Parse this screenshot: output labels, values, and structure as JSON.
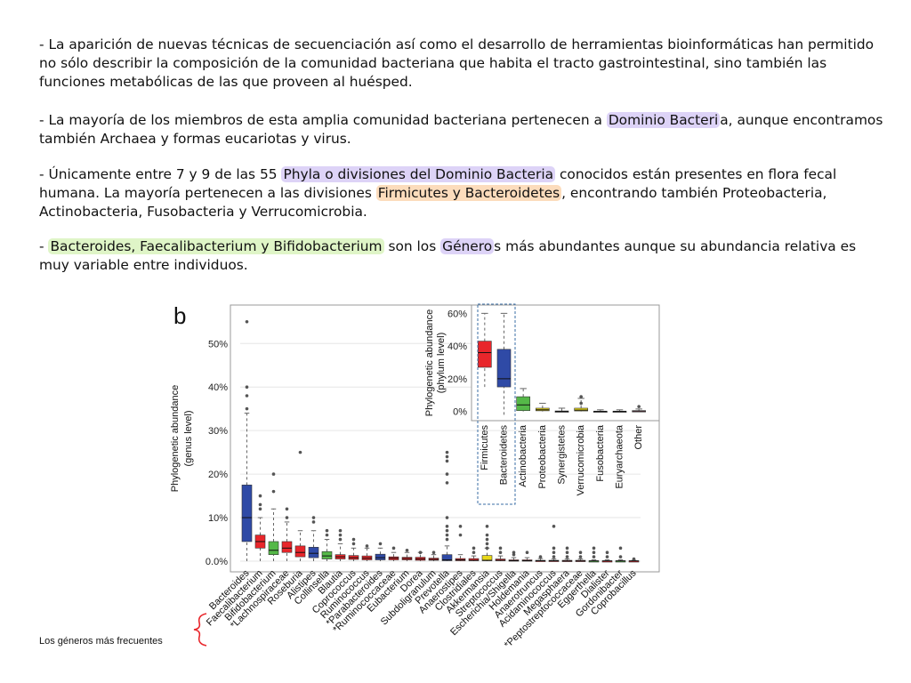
{
  "paragraphs": [
    {
      "id": "p1",
      "segments": [
        {
          "text": "- La aparición de nuevas técnicas de secuenciación así como el desarrollo de herramientas bioinformáticas han permitido no sólo describir la composición de la comunidad bacteriana que habita el tracto gastrointestinal, sino también las funciones metabólicas de las que proveen al huésped.",
          "hl": ""
        }
      ]
    },
    {
      "id": "p2",
      "segments": [
        {
          "text": "- La mayoría de los miembros de esta amplia comunidad bacteriana pertenecen a ",
          "hl": ""
        },
        {
          "text": "Dominio Bacteri",
          "hl": "purple"
        },
        {
          "text": "a, aunque encontramos también Archaea y formas eucariotas y virus.",
          "hl": ""
        }
      ]
    },
    {
      "id": "p3",
      "segments": [
        {
          "text": "- Únicamente entre 7 y 9 de las 55 ",
          "hl": ""
        },
        {
          "text": "Phyla o divisiones del Dominio Bacteria",
          "hl": "purple"
        },
        {
          "text": " conocidos están presentes en flora fecal humana. La mayoría pertenecen a las divisiones  ",
          "hl": ""
        },
        {
          "text": "Firmicutes y Bacteroidetes",
          "hl": "orange"
        },
        {
          "text": ", encontrando también Proteobacteria, Actinobacteria, Fusobacteria y Verrucomicrobia.",
          "hl": ""
        }
      ]
    },
    {
      "id": "p4",
      "segments": [
        {
          "text": "- ",
          "hl": ""
        },
        {
          "text": "Bacteroides, Faecalibacterium y Bifidobacterium",
          "hl": "green"
        },
        {
          "text": " son los ",
          "hl": ""
        },
        {
          "text": "Género",
          "hl": "purple"
        },
        {
          "text": "s más abundantes aunque su abundancia relativa es muy variable entre individuos.",
          "hl": ""
        }
      ]
    }
  ],
  "caption": "Los géneros más frecuentes",
  "colors": {
    "red": "#e8262b",
    "blue": "#2f4aa6",
    "green": "#55b848",
    "yellow": "#e8d81a",
    "pink": "#f08aa0",
    "gray": "#888888",
    "purple_hl": "#ddd3f7",
    "orange_hl": "#fcdcbc",
    "green_hl": "#dff5c7"
  },
  "chart_data": [
    {
      "type": "boxplot",
      "panel_letter": "b",
      "ylabel": "Phylogenetic abundance (genus level)",
      "ylim": [
        0,
        57
      ],
      "yticks": [
        0,
        10,
        20,
        30,
        40,
        50
      ],
      "ytick_labels": [
        "0.0%",
        "10%",
        "20%",
        "30%",
        "40%",
        "50%"
      ],
      "categories": [
        "Bacteroides",
        "Faecalibacterium",
        "Bifidobacterium",
        "*Lachnospiraceae",
        "Roseburia",
        "Alistipes",
        "Collinsella",
        "Blautia",
        "Coprococcus",
        "Ruminococcus",
        "*Parabacteroides",
        "*Ruminococcaceae",
        "Eubacterium",
        "Dorea",
        "Subdoligranulum",
        "Prevotella",
        "Anaerostipes",
        "Clostridiales",
        "Akkermansia",
        "Streptococcus",
        "Escherichia/Shigella",
        "Holdemania",
        "Anaerotruncus",
        "Acidaminococcus",
        "Megasphaera",
        "*Peptostreptococcaceae",
        "Eggerthella",
        "Dialister",
        "Gordonibacter",
        "Coprobacillus"
      ],
      "box_colors": [
        "blue",
        "red",
        "green",
        "red",
        "red",
        "blue",
        "green",
        "red",
        "red",
        "red",
        "blue",
        "red",
        "red",
        "red",
        "red",
        "blue",
        "red",
        "red",
        "yellow",
        "red",
        "red",
        "red",
        "red",
        "red",
        "red",
        "red",
        "green",
        "red",
        "green",
        "red"
      ],
      "q1": [
        4.5,
        3.0,
        1.5,
        2.0,
        1.0,
        0.8,
        0.5,
        0.5,
        0.4,
        0.3,
        0.3,
        0.3,
        0.3,
        0.2,
        0.2,
        0.1,
        0.1,
        0.1,
        0.1,
        0.1,
        0.05,
        0.05,
        0.05,
        0.05,
        0.02,
        0.02,
        0.02,
        0.02,
        0.02,
        0.02
      ],
      "median": [
        10,
        4.5,
        2.5,
        3.0,
        2.0,
        1.8,
        1.2,
        1.0,
        0.8,
        0.7,
        0.8,
        0.7,
        0.6,
        0.5,
        0.4,
        0.3,
        0.3,
        0.2,
        0.2,
        0.2,
        0.1,
        0.1,
        0.1,
        0.1,
        0.05,
        0.05,
        0.05,
        0.05,
        0.05,
        0.05
      ],
      "q3": [
        17.5,
        6.0,
        4.5,
        4.5,
        3.5,
        3.2,
        2.2,
        1.5,
        1.3,
        1.2,
        1.6,
        1.0,
        0.9,
        0.9,
        0.7,
        1.5,
        0.6,
        0.6,
        1.3,
        0.5,
        0.3,
        0.3,
        0.2,
        0.2,
        0.2,
        0.2,
        0.1,
        0.1,
        0.1,
        0.1
      ],
      "whisker_high": [
        34,
        10,
        12,
        9,
        7,
        7,
        5,
        4,
        3,
        3,
        3,
        2,
        2,
        2,
        1.5,
        3.5,
        1.5,
        1.2,
        3.0,
        1.2,
        0.8,
        0.8,
        0.6,
        0.5,
        0.5,
        0.5,
        0.3,
        0.3,
        0.3,
        0.2
      ],
      "outliers": [
        [
          35,
          38,
          40,
          55
        ],
        [
          12,
          13,
          15
        ],
        [
          16,
          20
        ],
        [
          10,
          12
        ],
        [
          25
        ],
        [
          9,
          10
        ],
        [
          6,
          7
        ],
        [
          5,
          6,
          7
        ],
        [
          4,
          5
        ],
        [
          3.5
        ],
        [
          4
        ],
        [
          3
        ],
        [
          2.5
        ],
        [
          2
        ],
        [
          2
        ],
        [
          5,
          6,
          7,
          8,
          10,
          18,
          20,
          23,
          24,
          25
        ],
        [
          6,
          8
        ],
        [
          2,
          3
        ],
        [
          3,
          4,
          5,
          6,
          8
        ],
        [
          2,
          3
        ],
        [
          1.5,
          2
        ],
        [
          2
        ],
        [
          1
        ],
        [
          1,
          2,
          3,
          8
        ],
        [
          1,
          2,
          3
        ],
        [
          1,
          2
        ],
        [
          1,
          2,
          3
        ],
        [
          1,
          2
        ],
        [
          1,
          3
        ],
        [
          0.5
        ]
      ]
    },
    {
      "type": "boxplot",
      "ylabel": "Phylogenetic abundance (phylum level)",
      "ylim": [
        -4,
        64
      ],
      "yticks": [
        0,
        20,
        40,
        60
      ],
      "ytick_labels": [
        "0%",
        "20%",
        "40%",
        "60%"
      ],
      "categories": [
        "Firmicutes",
        "Bacteroidetes",
        "Actinobacteria",
        "Proteobacteria",
        "Synergistetes",
        "Verrucomicrobia",
        "Fusobacteria",
        "Euryarchaeota",
        "Other"
      ],
      "box_colors": [
        "red",
        "blue",
        "green",
        "yellow",
        "gray",
        "yellow",
        "gray",
        "gray",
        "pink"
      ],
      "q1": [
        27,
        15,
        0.5,
        0.4,
        0,
        0.3,
        0,
        0,
        0
      ],
      "median": [
        36,
        20,
        4,
        1.0,
        0.05,
        0.8,
        0.05,
        0.05,
        0.2
      ],
      "q3": [
        43,
        38,
        9,
        2.0,
        0.3,
        2.0,
        0.2,
        0.2,
        0.5
      ],
      "whisker_low": [
        15,
        -2,
        0,
        0,
        0,
        0,
        0,
        0,
        0
      ],
      "whisker_high": [
        60,
        60,
        14,
        5,
        2,
        8,
        1,
        1,
        1.5
      ],
      "outliers": [
        [],
        [],
        [],
        [],
        [],
        [
          5,
          9
        ],
        [],
        [],
        [
          3
        ]
      ]
    }
  ]
}
